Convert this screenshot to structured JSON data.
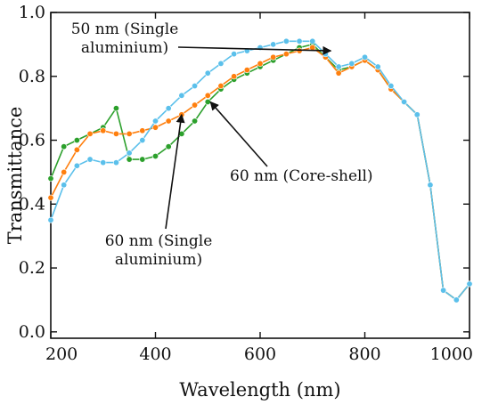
{
  "chart_data": {
    "type": "line",
    "title": "",
    "xlabel": "Wavelength (nm)",
    "ylabel": "Transmittance",
    "xlim": [
      200,
      1000
    ],
    "ylim": [
      -0.02,
      1.0
    ],
    "xticks": [
      200,
      400,
      600,
      800,
      1000
    ],
    "yticks": [
      0.0,
      0.2,
      0.4,
      0.6,
      0.8,
      1.0
    ],
    "xtick_labels": [
      "200",
      "400",
      "600",
      "800",
      "1000"
    ],
    "ytick_labels": [
      "0.0",
      "0.2",
      "0.4",
      "0.6",
      "0.8",
      "1.0"
    ],
    "grid": false,
    "legend": "none",
    "series": [
      {
        "color": "#2ca02c",
        "x": [
          200,
          225,
          250,
          275,
          300,
          325,
          350,
          375,
          400,
          425,
          450,
          475,
          500,
          525,
          550,
          575,
          600,
          625,
          650,
          675,
          700,
          725,
          750,
          775,
          800,
          825,
          850,
          875,
          900,
          925,
          950,
          975,
          1000
        ],
        "y": [
          0.48,
          0.58,
          0.6,
          0.62,
          0.64,
          0.7,
          0.54,
          0.54,
          0.55,
          0.58,
          0.62,
          0.66,
          0.72,
          0.76,
          0.79,
          0.81,
          0.83,
          0.85,
          0.87,
          0.89,
          0.9,
          0.86,
          0.82,
          0.83,
          0.85,
          0.82,
          0.76,
          0.72,
          0.68,
          0.46,
          0.13,
          0.1,
          0.15
        ]
      },
      {
        "color": "#ff7f0e",
        "x": [
          200,
          225,
          250,
          275,
          300,
          325,
          350,
          375,
          400,
          425,
          450,
          475,
          500,
          525,
          550,
          575,
          600,
          625,
          650,
          675,
          700,
          725,
          750,
          775,
          800,
          825,
          850,
          875,
          900,
          925,
          950,
          975,
          1000
        ],
        "y": [
          0.42,
          0.5,
          0.57,
          0.62,
          0.63,
          0.62,
          0.62,
          0.63,
          0.64,
          0.66,
          0.68,
          0.71,
          0.74,
          0.77,
          0.8,
          0.82,
          0.84,
          0.86,
          0.87,
          0.88,
          0.89,
          0.86,
          0.81,
          0.83,
          0.85,
          0.82,
          0.76,
          0.72,
          0.68,
          0.46,
          0.13,
          0.1,
          0.15
        ]
      },
      {
        "color": "#5bc0eb",
        "x": [
          200,
          225,
          250,
          275,
          300,
          325,
          350,
          375,
          400,
          425,
          450,
          475,
          500,
          525,
          550,
          575,
          600,
          625,
          650,
          675,
          700,
          725,
          750,
          775,
          800,
          825,
          850,
          875,
          900,
          925,
          950,
          975,
          1000
        ],
        "y": [
          0.35,
          0.46,
          0.52,
          0.54,
          0.53,
          0.53,
          0.56,
          0.6,
          0.66,
          0.7,
          0.74,
          0.77,
          0.81,
          0.84,
          0.87,
          0.88,
          0.89,
          0.9,
          0.91,
          0.91,
          0.91,
          0.87,
          0.83,
          0.84,
          0.86,
          0.83,
          0.77,
          0.72,
          0.68,
          0.46,
          0.13,
          0.1,
          0.15
        ]
      }
    ],
    "annotations": [
      {
        "lines": [
          "50 nm (Single",
          "aluminium)"
        ],
        "target": [
          735,
          0.88
        ]
      },
      {
        "lines": [
          "60 nm (Core-shell)"
        ],
        "target": [
          505,
          0.72
        ]
      },
      {
        "lines": [
          "60 nm (Single",
          "aluminium)"
        ],
        "target": [
          450,
          0.68
        ]
      }
    ]
  }
}
